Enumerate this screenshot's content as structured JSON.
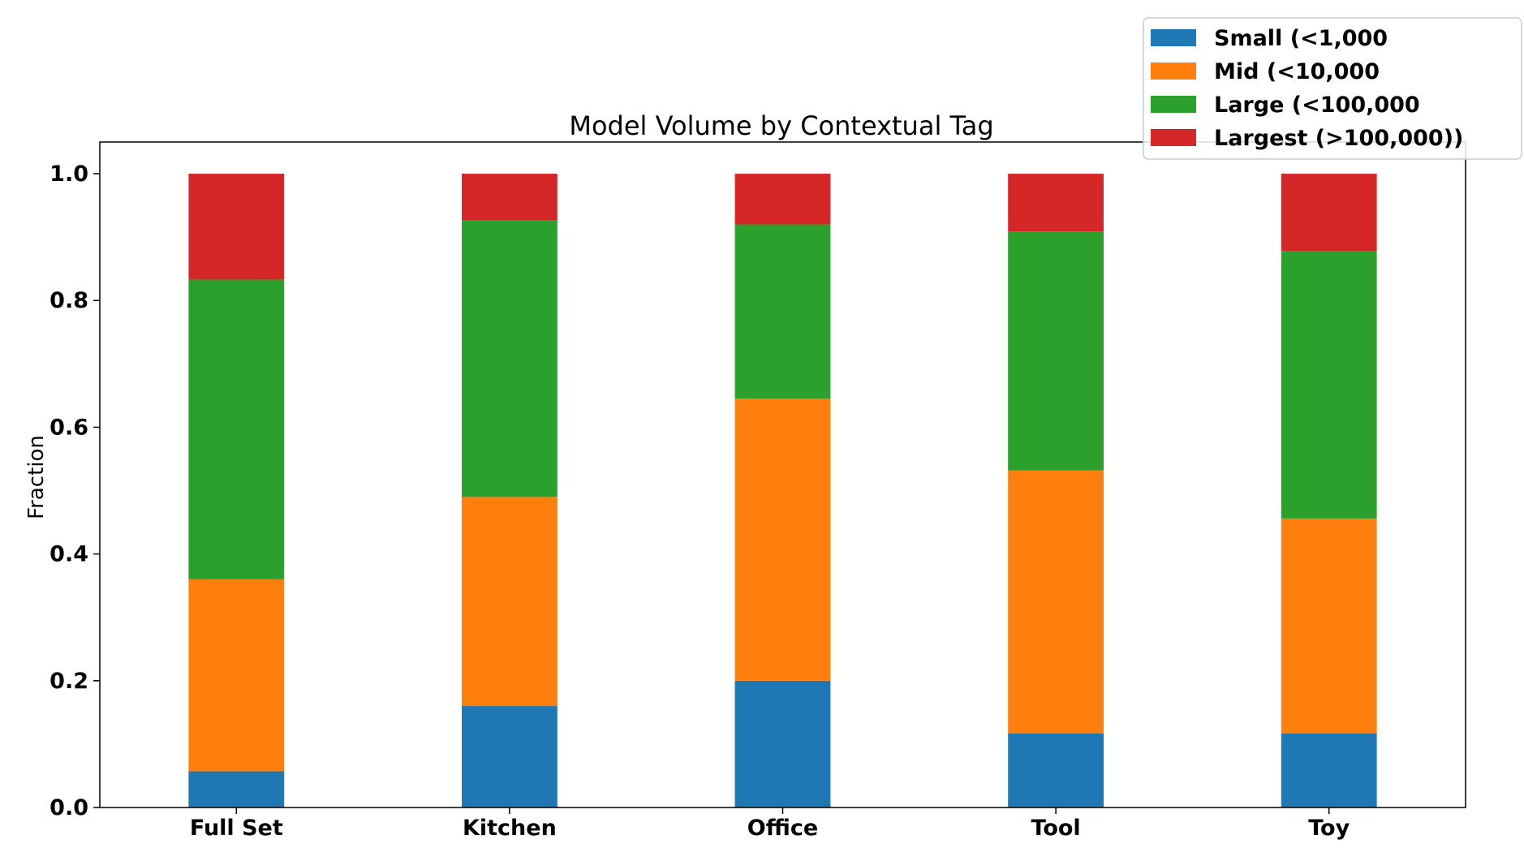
{
  "chart_data": {
    "type": "bar",
    "stacked": true,
    "title": "Model Volume by Contextual Tag",
    "xlabel": "",
    "ylabel": "Fraction",
    "ylim": [
      0,
      1.05
    ],
    "yticks": [
      "0.0",
      "0.2",
      "0.4",
      "0.6",
      "0.8",
      "1.0"
    ],
    "categories": [
      "Full Set",
      "Kitchen",
      "Office",
      "Tool",
      "Toy"
    ],
    "series": [
      {
        "name": "Small (<1,000",
        "color": "#1f77b4",
        "values": [
          0.057,
          0.16,
          0.2,
          0.117,
          0.117
        ]
      },
      {
        "name": "Mid (<10,000",
        "color": "#ff7f0e",
        "values": [
          0.303,
          0.33,
          0.445,
          0.415,
          0.339
        ]
      },
      {
        "name": "Large (<100,000",
        "color": "#2ca02c",
        "values": [
          0.473,
          0.437,
          0.275,
          0.377,
          0.422
        ]
      },
      {
        "name": "Largest (>100,000))",
        "color": "#d62728",
        "values": [
          0.167,
          0.073,
          0.08,
          0.091,
          0.122
        ]
      }
    ],
    "grid": false,
    "legend_position": "top-right"
  }
}
